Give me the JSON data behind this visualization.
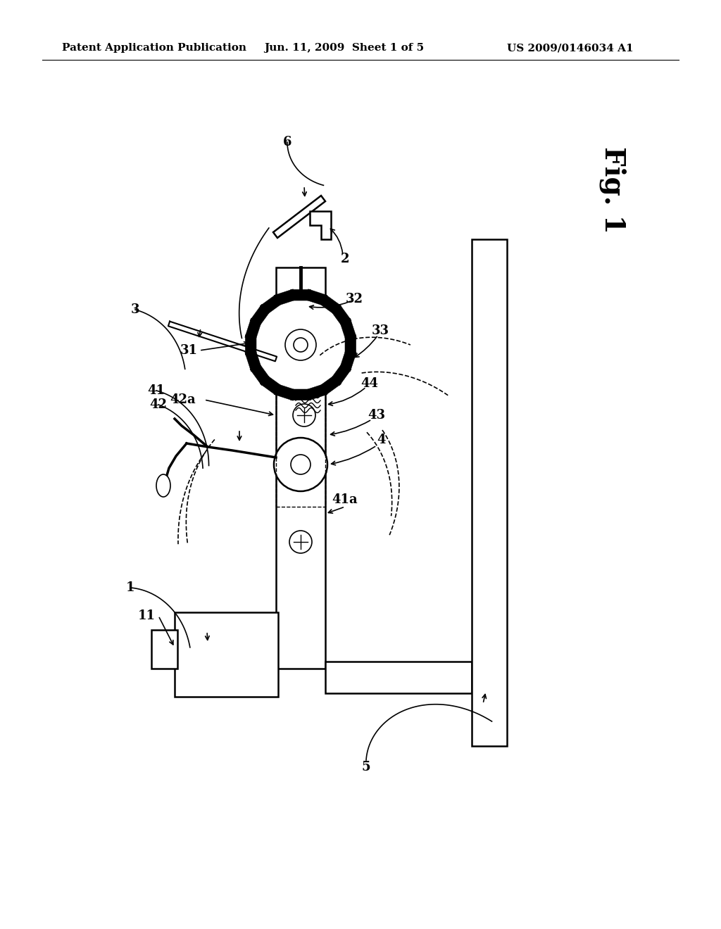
{
  "bg_color": "#ffffff",
  "header_text1": "Patent Application Publication",
  "header_text2": "Jun. 11, 2009  Sheet 1 of 5",
  "header_text3": "US 2009/0146034 A1",
  "fig_label": "Fig. 1"
}
